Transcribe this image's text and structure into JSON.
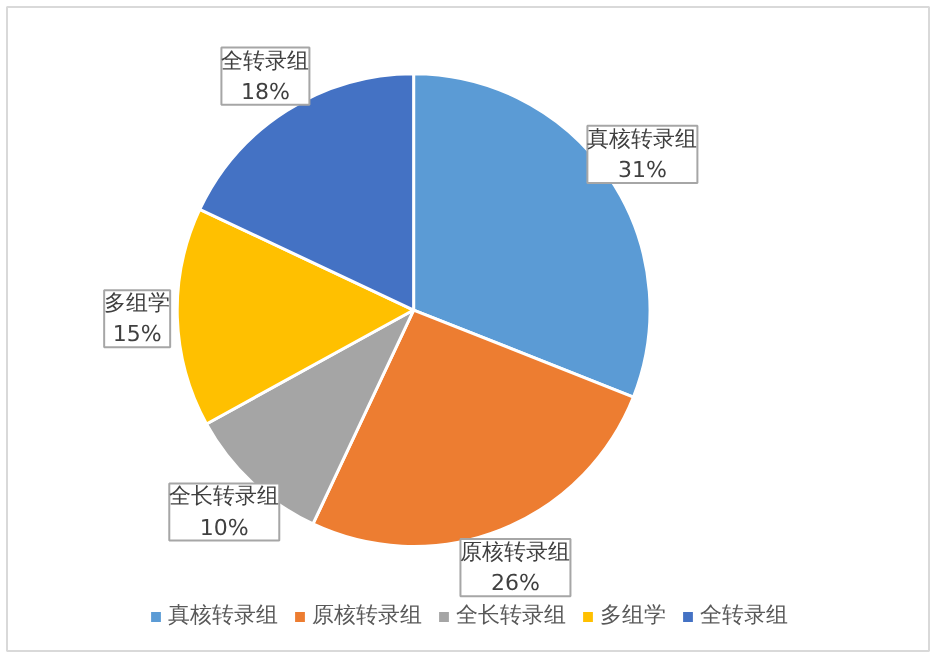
{
  "chart_data": {
    "type": "pie",
    "categories": [
      "真核转录组",
      "原核转录组",
      "全长转录组",
      "多组学",
      "全转录组"
    ],
    "values": [
      31,
      26,
      10,
      15,
      18
    ],
    "value_labels": [
      "31%",
      "26%",
      "10%",
      "15%",
      "18%"
    ],
    "colors": [
      "#5b9bd5",
      "#ed7d31",
      "#a5a5a5",
      "#ffc000",
      "#4472c4"
    ],
    "legend": "bottom"
  }
}
